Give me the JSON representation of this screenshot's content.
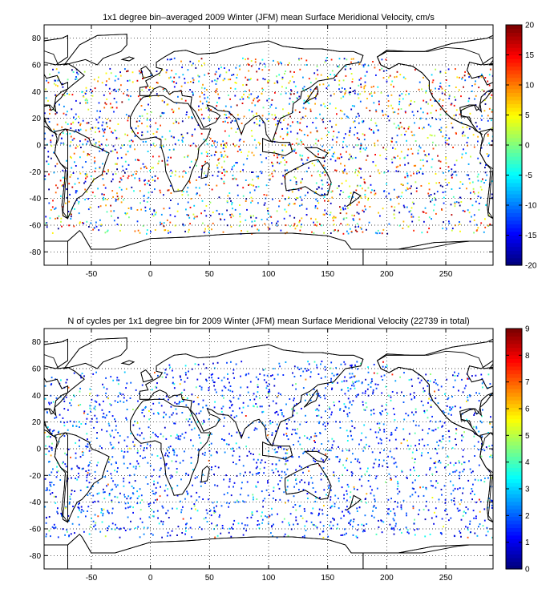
{
  "colors": {
    "axis": "#000000",
    "grid": "#000000",
    "coast": "#000000",
    "background": "#ffffff"
  },
  "chart_data": [
    {
      "type": "heatmap",
      "title": "1x1 degree bin–averaged 2009 Winter (JFM) mean Surface Meridional Velocity, cm/s",
      "xlabel": "",
      "ylabel": "",
      "xlim": [
        -90,
        290
      ],
      "ylim": [
        -90,
        90
      ],
      "xticks": [
        -50,
        0,
        50,
        100,
        150,
        200,
        250
      ],
      "yticks": [
        -80,
        -60,
        -40,
        -20,
        0,
        20,
        40,
        60,
        80
      ],
      "grid": true,
      "colormap": "jet",
      "colorbar": {
        "min": -20,
        "max": 20,
        "ticks": [
          -20,
          -15,
          -10,
          -5,
          0,
          5,
          10,
          15,
          20
        ]
      }
    },
    {
      "type": "heatmap",
      "title": "N of cycles per 1x1 degree bin for 2009 Winter (JFM) mean Surface Meridional Velocity (22739 in total)",
      "xlabel": "",
      "ylabel": "",
      "xlim": [
        -90,
        290
      ],
      "ylim": [
        -90,
        90
      ],
      "xticks": [
        -50,
        0,
        50,
        100,
        150,
        200,
        250
      ],
      "yticks": [
        -80,
        -60,
        -40,
        -20,
        0,
        20,
        40,
        60,
        80
      ],
      "grid": true,
      "colormap": "jet",
      "colorbar": {
        "min": 0,
        "max": 9,
        "ticks": [
          0,
          1,
          2,
          3,
          4,
          5,
          6,
          7,
          8,
          9
        ]
      }
    }
  ]
}
